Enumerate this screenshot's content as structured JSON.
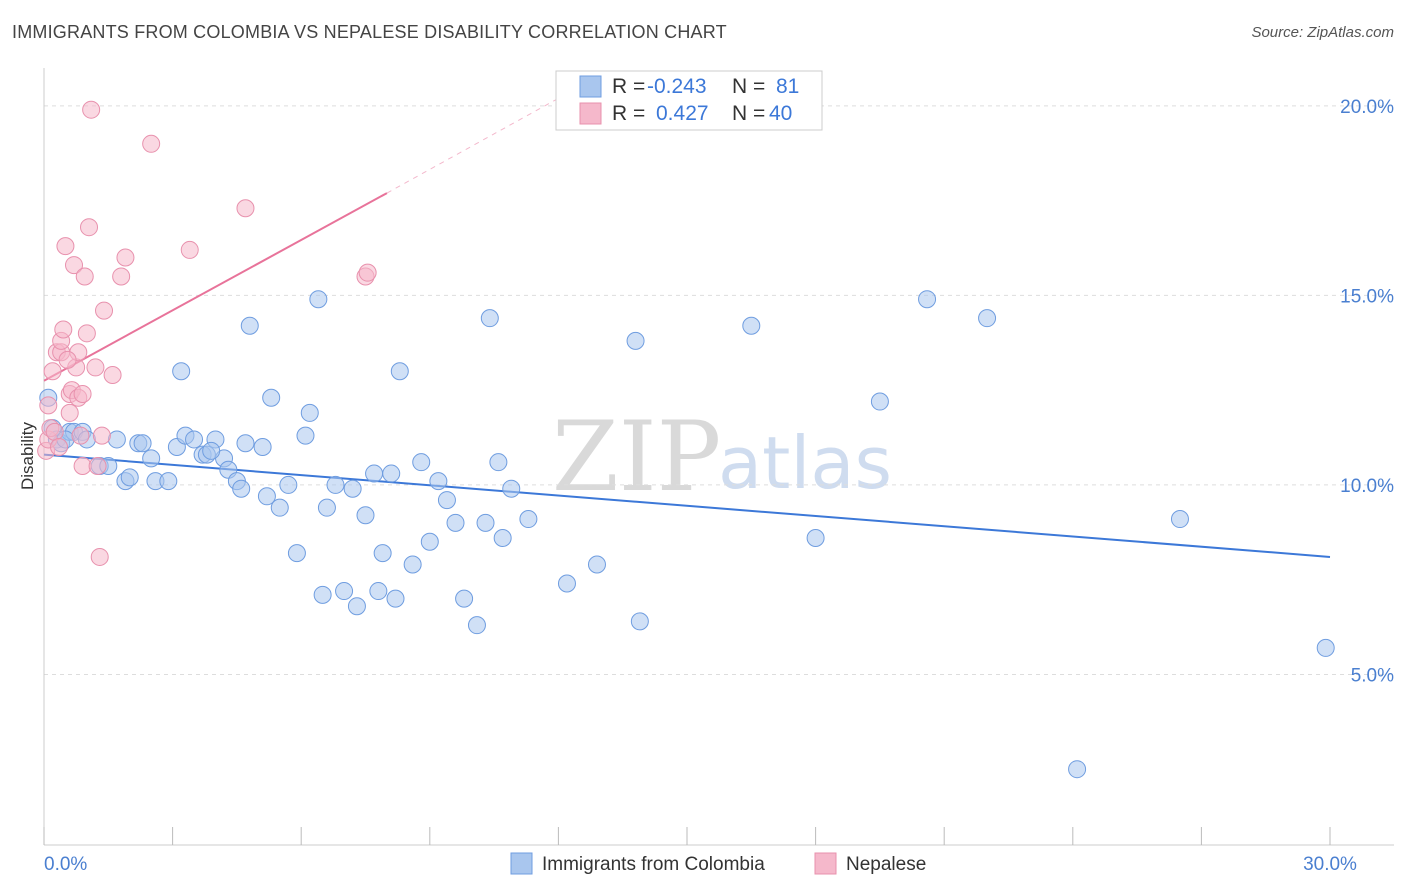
{
  "header": {
    "title": "IMMIGRANTS FROM COLOMBIA VS NEPALESE DISABILITY CORRELATION CHART",
    "source": "Source: ZipAtlas.com"
  },
  "watermark": {
    "zip": "ZIP",
    "atlas": "atlas"
  },
  "colors": {
    "blue": "#3c78d8",
    "blue_fill": "#a9c6ee",
    "pink": "#e8739a",
    "pink_fill": "#f5b8cb",
    "grid": "#dddddd",
    "tick_text": "#4a7fd0"
  },
  "legend_top": {
    "rows": [
      {
        "r_label": "R =",
        "r_value": "-0.243",
        "n_label": "N =",
        "n_value": "81"
      },
      {
        "r_label": "R =",
        "r_value": "0.427",
        "n_label": "N =",
        "n_value": "40"
      }
    ]
  },
  "legend_bottom": {
    "items": [
      {
        "label": "Immigrants from Colombia"
      },
      {
        "label": "Nepalese"
      }
    ]
  },
  "chart_data": {
    "type": "scatter",
    "title": "IMMIGRANTS FROM COLOMBIA VS NEPALESE DISABILITY CORRELATION CHART",
    "xlabel": "",
    "ylabel": "Disability",
    "xlim": [
      0,
      30
    ],
    "ylim": [
      0.5,
      21.0
    ],
    "x_ticks": [
      0,
      3,
      6,
      9,
      12,
      15,
      18,
      21,
      24,
      27,
      30
    ],
    "x_tick_labels": {
      "0": "0.0%",
      "30": "30.0%"
    },
    "y_ticks": [
      5,
      10,
      15,
      20
    ],
    "y_tick_labels": [
      "5.0%",
      "10.0%",
      "15.0%",
      "20.0%"
    ],
    "grid": "horizontal dashed",
    "legend_position": "top-center",
    "series": [
      {
        "name": "Immigrants from Colombia",
        "color": "#3c78d8",
        "trend": {
          "x": [
            0,
            30
          ],
          "y": [
            10.8,
            8.1
          ]
        },
        "points": [
          [
            0.1,
            12.3
          ],
          [
            0.2,
            11.5
          ],
          [
            0.3,
            11.2
          ],
          [
            0.4,
            11.1
          ],
          [
            0.6,
            11.4
          ],
          [
            0.7,
            11.4
          ],
          [
            0.9,
            11.4
          ],
          [
            1.0,
            11.2
          ],
          [
            1.3,
            10.5
          ],
          [
            1.7,
            11.2
          ],
          [
            1.9,
            10.1
          ],
          [
            2.0,
            10.2
          ],
          [
            2.2,
            11.1
          ],
          [
            2.3,
            11.1
          ],
          [
            2.5,
            10.7
          ],
          [
            2.6,
            10.1
          ],
          [
            2.9,
            10.1
          ],
          [
            3.1,
            11.0
          ],
          [
            3.2,
            13.0
          ],
          [
            3.3,
            11.3
          ],
          [
            3.5,
            11.2
          ],
          [
            3.7,
            10.8
          ],
          [
            3.8,
            10.8
          ],
          [
            4.0,
            11.2
          ],
          [
            4.2,
            10.7
          ],
          [
            4.3,
            10.4
          ],
          [
            4.5,
            10.1
          ],
          [
            4.6,
            9.9
          ],
          [
            4.7,
            11.1
          ],
          [
            4.8,
            14.2
          ],
          [
            5.1,
            11.0
          ],
          [
            5.2,
            9.7
          ],
          [
            5.3,
            12.3
          ],
          [
            5.5,
            9.4
          ],
          [
            5.7,
            10.0
          ],
          [
            5.9,
            8.2
          ],
          [
            6.1,
            11.3
          ],
          [
            6.2,
            11.9
          ],
          [
            6.4,
            14.9
          ],
          [
            6.5,
            7.1
          ],
          [
            6.6,
            9.4
          ],
          [
            7.0,
            7.2
          ],
          [
            7.2,
            9.9
          ],
          [
            7.3,
            6.8
          ],
          [
            7.5,
            9.2
          ],
          [
            7.7,
            10.3
          ],
          [
            7.8,
            7.2
          ],
          [
            7.9,
            8.2
          ],
          [
            8.1,
            10.3
          ],
          [
            8.2,
            7.0
          ],
          [
            8.3,
            13.0
          ],
          [
            8.6,
            7.9
          ],
          [
            8.8,
            10.6
          ],
          [
            9.0,
            8.5
          ],
          [
            9.2,
            10.1
          ],
          [
            9.4,
            9.6
          ],
          [
            9.6,
            9.0
          ],
          [
            9.8,
            7.0
          ],
          [
            10.1,
            6.3
          ],
          [
            10.3,
            9.0
          ],
          [
            10.4,
            14.4
          ],
          [
            10.6,
            10.6
          ],
          [
            10.7,
            8.6
          ],
          [
            10.9,
            9.9
          ],
          [
            11.3,
            9.1
          ],
          [
            12.2,
            7.4
          ],
          [
            12.9,
            7.9
          ],
          [
            13.8,
            13.8
          ],
          [
            13.9,
            6.4
          ],
          [
            16.5,
            14.2
          ],
          [
            18.0,
            8.6
          ],
          [
            19.5,
            12.2
          ],
          [
            20.6,
            14.9
          ],
          [
            22.0,
            14.4
          ],
          [
            24.1,
            2.5
          ],
          [
            26.5,
            9.1
          ],
          [
            29.9,
            5.7
          ],
          [
            0.5,
            11.2
          ],
          [
            1.5,
            10.5
          ],
          [
            3.9,
            10.9
          ],
          [
            6.8,
            10.0
          ]
        ]
      },
      {
        "name": "Nepalese",
        "color": "#e8739a",
        "trend": {
          "x": [
            0,
            8.0
          ],
          "y": [
            12.75,
            17.7
          ]
        },
        "trend_dashed": {
          "x": [
            8.0,
            12.0
          ],
          "y": [
            17.7,
            20.2
          ]
        },
        "points": [
          [
            0.05,
            10.9
          ],
          [
            0.1,
            11.2
          ],
          [
            0.1,
            12.1
          ],
          [
            0.15,
            11.5
          ],
          [
            0.2,
            13.0
          ],
          [
            0.25,
            11.4
          ],
          [
            0.3,
            13.5
          ],
          [
            0.4,
            13.5
          ],
          [
            0.4,
            13.8
          ],
          [
            0.45,
            14.1
          ],
          [
            0.5,
            16.3
          ],
          [
            0.6,
            12.4
          ],
          [
            0.6,
            11.9
          ],
          [
            0.65,
            12.5
          ],
          [
            0.7,
            15.8
          ],
          [
            0.75,
            13.1
          ],
          [
            0.8,
            12.3
          ],
          [
            0.8,
            13.5
          ],
          [
            0.85,
            11.3
          ],
          [
            0.9,
            12.4
          ],
          [
            0.9,
            10.5
          ],
          [
            0.95,
            15.5
          ],
          [
            1.0,
            14.0
          ],
          [
            1.05,
            16.8
          ],
          [
            1.1,
            19.9
          ],
          [
            1.2,
            13.1
          ],
          [
            1.25,
            10.5
          ],
          [
            1.3,
            8.1
          ],
          [
            1.35,
            11.3
          ],
          [
            1.4,
            14.6
          ],
          [
            1.6,
            12.9
          ],
          [
            1.8,
            15.5
          ],
          [
            1.9,
            16.0
          ],
          [
            2.5,
            19.0
          ],
          [
            3.4,
            16.2
          ],
          [
            4.7,
            17.3
          ],
          [
            7.5,
            15.5
          ],
          [
            7.55,
            15.6
          ],
          [
            0.35,
            11.0
          ],
          [
            0.55,
            13.3
          ]
        ]
      }
    ]
  }
}
